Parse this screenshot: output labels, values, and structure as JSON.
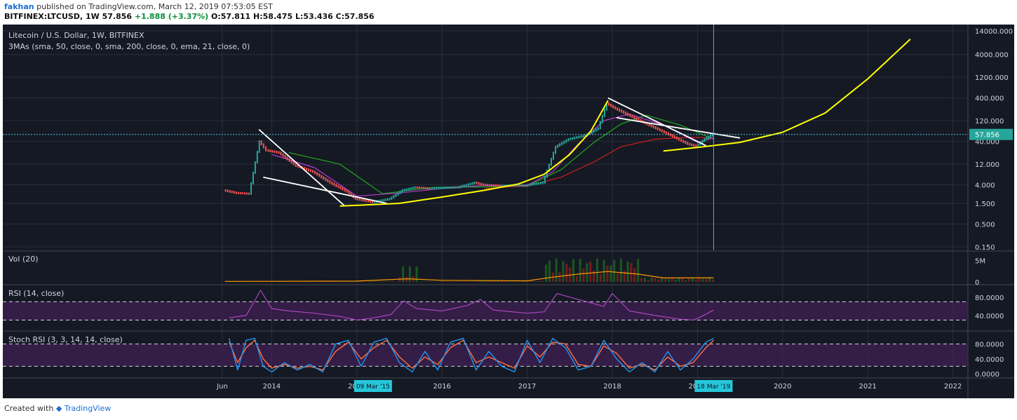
{
  "header": {
    "author": "fakhan",
    "published": "published on TradingView.com, March 12, 2019 07:53:05 EST"
  },
  "ohlc": {
    "symbol": "BITFINEX:LTCUSD, 1W",
    "last": "57.856",
    "change": "+1.888 (+3.37%)",
    "open": "O:57.811",
    "high": "H:58.475",
    "low": "L:53.436",
    "close": "C:57.856"
  },
  "footer": {
    "created_with": "Created with",
    "brand": "TradingView"
  },
  "colors": {
    "background": "#151924",
    "grid": "#2a2e39",
    "candle_up": "#26a69a",
    "candle_down": "#ef5350",
    "sma50": "#1faa1f",
    "sma200": "#cc1e1e",
    "ema21": "#c23ad4",
    "trend_curve": "#ffff00",
    "trendline": "#ffffff",
    "price_line": "#4dd0e1",
    "cursor_line": "#26c6da",
    "rsi": "#ab47bc",
    "stoch_k": "#2196f3",
    "stoch_d": "#ff7043",
    "volume_ma": "#ff9800"
  },
  "chart_data": [
    {
      "type": "line",
      "title": "Litecoin / U.S. Dollar, 1W, BITFINEX",
      "indicator_label": "3MAs (sma, 50, close, 0, sma, 200, close, 0, ema, 21, close, 0)",
      "yscale": "log",
      "y_ticks": [
        "14000.000",
        "4000.000",
        "1200.000",
        "400.000",
        "120.000",
        "40.000",
        "12.000",
        "4.000",
        "1.500",
        "0.500",
        "0.150"
      ],
      "x_ticks": [
        "Jun",
        "2014",
        "2015",
        "2016",
        "2017",
        "2018",
        "2019",
        "2020",
        "2021",
        "2022"
      ],
      "last_price_label": "57.856",
      "cursor_date_labels": [
        "09 Mar '15",
        "18 Mar '19"
      ],
      "price_series": {
        "name": "LTCUSD weekly close",
        "x": [
          2013.45,
          2013.6,
          2013.75,
          2013.87,
          2013.95,
          2014.1,
          2014.3,
          2014.5,
          2014.7,
          2014.9,
          2015.0,
          2015.2,
          2015.4,
          2015.55,
          2015.7,
          2015.85,
          2016.0,
          2016.2,
          2016.4,
          2016.5,
          2016.7,
          2016.9,
          2017.0,
          2017.2,
          2017.35,
          2017.5,
          2017.7,
          2017.85,
          2017.95,
          2018.05,
          2018.3,
          2018.5,
          2018.7,
          2018.9,
          2019.0,
          2019.1,
          2019.19
        ],
        "y": [
          3.0,
          2.6,
          2.5,
          40.0,
          25.0,
          22.0,
          11.0,
          8.0,
          4.5,
          2.8,
          1.9,
          1.6,
          1.9,
          3.0,
          3.5,
          3.3,
          3.4,
          3.5,
          4.5,
          4.0,
          3.8,
          3.9,
          3.9,
          4.5,
          30.0,
          45.0,
          55.0,
          80.0,
          300.0,
          230.0,
          130.0,
          85.0,
          55.0,
          35.0,
          31.0,
          45.0,
          57.856
        ]
      },
      "moving_averages": [
        {
          "name": "sma 50",
          "x": [
            2014.2,
            2014.8,
            2015.3,
            2015.9,
            2016.5,
            2017.0,
            2017.4,
            2017.8,
            2018.1,
            2018.4,
            2018.8,
            2019.19
          ],
          "y": [
            22.0,
            12.0,
            2.5,
            3.5,
            3.6,
            3.7,
            9.0,
            40.0,
            100.0,
            160.0,
            95.0,
            45.0
          ]
        },
        {
          "name": "sma 200",
          "x": [
            2016.5,
            2017.0,
            2017.4,
            2017.8,
            2018.1,
            2018.5,
            2018.9,
            2019.19
          ],
          "y": [
            3.3,
            3.8,
            6.0,
            14.0,
            30.0,
            45.0,
            50.0,
            48.0
          ]
        },
        {
          "name": "ema 21",
          "x": [
            2014.0,
            2014.5,
            2015.0,
            2015.5,
            2016.0,
            2016.5,
            2017.0,
            2017.3,
            2017.6,
            2017.9,
            2018.2,
            2018.6,
            2019.0,
            2019.19
          ],
          "y": [
            20.0,
            10.0,
            2.2,
            2.6,
            3.3,
            3.9,
            3.9,
            8.0,
            35.0,
            120.0,
            170.0,
            95.0,
            38.0,
            48.0
          ]
        }
      ],
      "annotations": {
        "yellow_curve": {
          "x": [
            2014.8,
            2015.5,
            2016.0,
            2016.5,
            2016.9,
            2017.2,
            2017.5,
            2017.75,
            2017.95
          ],
          "y": [
            1.3,
            1.5,
            2.1,
            3.0,
            4.2,
            7.0,
            20.0,
            70.0,
            350.0
          ]
        },
        "yellow_curve_2": {
          "x": [
            2018.6,
            2019.0,
            2019.5,
            2020.0,
            2020.5,
            2021.0,
            2021.5
          ],
          "y": [
            24.0,
            29.0,
            38.0,
            65.0,
            180.0,
            1100.0,
            9000.0
          ]
        },
        "white_lines": [
          {
            "x": [
              2013.85,
              2014.85
            ],
            "y": [
              75.0,
              1.35
            ]
          },
          {
            "x": [
              2013.9,
              2015.35
            ],
            "y": [
              6.0,
              1.5
            ]
          },
          {
            "x": [
              2017.95,
              2019.1
            ],
            "y": [
              400.0,
              32.0
            ]
          },
          {
            "x": [
              2018.05,
              2019.5
            ],
            "y": [
              140.0,
              48.0
            ]
          }
        ]
      }
    },
    {
      "type": "bar",
      "title": "Vol (20)",
      "y_ticks": [
        "5M",
        "0"
      ],
      "note": "weekly volume bars with 20-period volume moving average"
    },
    {
      "type": "line",
      "title": "RSI (14, close)",
      "y_ticks": [
        "80.0000",
        "40.0000"
      ],
      "bands": [
        70,
        30
      ],
      "x": [
        2013.5,
        2013.7,
        2013.87,
        2014.0,
        2014.2,
        2014.5,
        2014.8,
        2015.0,
        2015.2,
        2015.4,
        2015.55,
        2015.7,
        2016.0,
        2016.3,
        2016.45,
        2016.6,
        2017.0,
        2017.2,
        2017.35,
        2017.5,
        2017.7,
        2017.9,
        2018.0,
        2018.2,
        2018.5,
        2018.8,
        2018.95,
        2019.05,
        2019.19
      ],
      "values": [
        35,
        40,
        95,
        55,
        50,
        45,
        38,
        30,
        35,
        42,
        72,
        55,
        50,
        62,
        75,
        52,
        45,
        48,
        88,
        80,
        70,
        60,
        88,
        50,
        40,
        32,
        30,
        38,
        52
      ]
    },
    {
      "type": "line",
      "title": "Stoch RSI (3, 3, 14, 14, close)",
      "y_ticks": [
        "80.0000",
        "40.0000",
        "0.0000"
      ],
      "bands": [
        80,
        20
      ],
      "series": [
        {
          "name": "%K",
          "x": [
            2013.5,
            2013.6,
            2013.7,
            2013.8,
            2013.9,
            2014.0,
            2014.15,
            2014.3,
            2014.45,
            2014.6,
            2014.75,
            2014.9,
            2015.05,
            2015.2,
            2015.35,
            2015.5,
            2015.65,
            2015.8,
            2015.95,
            2016.1,
            2016.25,
            2016.4,
            2016.55,
            2016.7,
            2016.85,
            2017.0,
            2017.15,
            2017.3,
            2017.45,
            2017.6,
            2017.75,
            2017.9,
            2018.05,
            2018.2,
            2018.35,
            2018.5,
            2018.65,
            2018.8,
            2018.95,
            2019.1,
            2019.19
          ],
          "values": [
            95,
            10,
            90,
            95,
            20,
            5,
            30,
            10,
            25,
            5,
            80,
            90,
            20,
            85,
            95,
            30,
            5,
            60,
            10,
            85,
            95,
            10,
            60,
            20,
            5,
            90,
            30,
            95,
            70,
            10,
            20,
            90,
            40,
            5,
            30,
            5,
            60,
            10,
            40,
            85,
            95
          ]
        },
        {
          "name": "%D",
          "x": [
            2013.5,
            2013.6,
            2013.7,
            2013.8,
            2013.9,
            2014.0,
            2014.15,
            2014.3,
            2014.45,
            2014.6,
            2014.75,
            2014.9,
            2015.05,
            2015.2,
            2015.35,
            2015.5,
            2015.65,
            2015.8,
            2015.95,
            2016.1,
            2016.25,
            2016.4,
            2016.55,
            2016.7,
            2016.85,
            2017.0,
            2017.15,
            2017.3,
            2017.45,
            2017.6,
            2017.75,
            2017.9,
            2018.05,
            2018.2,
            2018.35,
            2018.5,
            2018.65,
            2018.8,
            2018.95,
            2019.1,
            2019.19
          ],
          "values": [
            85,
            30,
            70,
            90,
            40,
            15,
            25,
            15,
            20,
            10,
            60,
            85,
            40,
            70,
            90,
            45,
            15,
            45,
            25,
            70,
            90,
            30,
            45,
            30,
            15,
            75,
            45,
            85,
            80,
            25,
            20,
            75,
            55,
            15,
            25,
            10,
            45,
            20,
            30,
            70,
            90
          ]
        }
      ]
    }
  ]
}
